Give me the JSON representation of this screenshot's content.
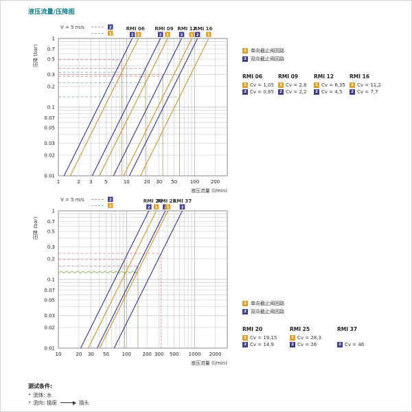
{
  "page": {
    "title": "液压流量/压降图"
  },
  "legend_circuits": {
    "badge1": "1",
    "badge2": "2",
    "item1": "单向截止阀回路",
    "item2": "双向截止阀回路"
  },
  "chart_data": [
    {
      "type": "line",
      "id": "small-sizes",
      "title": "",
      "velocity_label": "V = 5 m/s",
      "xlabel": "液压流量 (l/min)",
      "ylabel": "压降 (bar)",
      "x_scale": "log",
      "y_scale": "log",
      "xmin": 1,
      "xmax": 300,
      "ymin": 0.01,
      "ymax": 1,
      "x_ticks": [
        1,
        2,
        3,
        5,
        10,
        20,
        30,
        50,
        100,
        200
      ],
      "y_ticks": [
        1,
        0.7,
        0.5,
        0.3,
        0.2,
        0.1,
        0.07,
        0.05,
        0.03,
        0.02,
        0.01
      ],
      "grid": true,
      "flow_formula": "Q_l_per_min = 14.27 * Cv * sqrt(dP_bar)",
      "models": [
        {
          "name": "RMI 06",
          "cv1": 1.05,
          "cv2": 0.85,
          "q5": 8.5
        },
        {
          "name": "RMI 09",
          "cv1": 2.8,
          "cv2": 2.2,
          "q5": 19
        },
        {
          "name": "RMI 12",
          "cv1": 6.35,
          "cv2": 4.5,
          "q5": 34
        },
        {
          "name": "RMI 16",
          "cv1": 11.2,
          "cv2": 7.7,
          "q5": 60
        }
      ]
    },
    {
      "type": "line",
      "id": "large-sizes",
      "title": "",
      "velocity_label": "V = 5 m/s",
      "xlabel": "液压流量 (l/min)",
      "ylabel": "压降 (bar)",
      "x_scale": "log",
      "y_scale": "log",
      "xmin": 10,
      "xmax": 3000,
      "ymin": 0.01,
      "ymax": 1,
      "x_ticks": [
        10,
        20,
        30,
        50,
        100,
        200,
        300,
        500,
        1000,
        2000
      ],
      "y_ticks": [
        1,
        0.7,
        0.5,
        0.3,
        0.2,
        0.1,
        0.07,
        0.05,
        0.03,
        0.02,
        0.01
      ],
      "grid": true,
      "flow_formula": "Q_l_per_min = 14.27 * Cv * sqrt(dP_bar)",
      "zigzag": {
        "dp": 0.128,
        "q_end": 150
      },
      "models": [
        {
          "name": "RMI 20",
          "cv1": 19.15,
          "cv2": 14.9,
          "q5": 94
        },
        {
          "name": "RMI 25",
          "cv1": 28.3,
          "cv2": 26,
          "q5": 147
        },
        {
          "name": "RMI 37",
          "cv1": null,
          "cv2": 46,
          "q5": 322
        }
      ]
    }
  ],
  "tables": [
    {
      "columns": [
        {
          "name": "RMI 06",
          "cv1": "Cv = 1,05",
          "cv2": "Cv = 0,85"
        },
        {
          "name": "RMI 09",
          "cv1": "Cv = 2,8",
          "cv2": "Cv = 2,2"
        },
        {
          "name": "RMI 12",
          "cv1": "Cv = 6,35",
          "cv2": "Cv = 4,5"
        },
        {
          "name": "RMI 16",
          "cv1": "Cv = 11,2",
          "cv2": "Cv = 7,7"
        }
      ]
    },
    {
      "columns": [
        {
          "name": "RMI 20",
          "cv1": "Cv = 19,15",
          "cv2": "Cv = 14,9"
        },
        {
          "name": "RMI 25",
          "cv1": "Cv = 28,3",
          "cv2": "Cv = 26"
        },
        {
          "name": "RMI 37",
          "cv1": "",
          "cv2": "Cv = 46"
        }
      ]
    }
  ],
  "footer": {
    "title": "测试条件:",
    "bullet": "•",
    "item1": "流体: 水",
    "item2_pre": "流向: 插座",
    "item2_post": "插头"
  },
  "colors": {
    "title_teal": "#17808e",
    "line_circuit2_navy": "#3e4291",
    "line_circuit1_orange": "#cf9a3a",
    "badge_navy": "#3c3e8e",
    "badge_orange": "#df9f2b",
    "ref_dash_red": "#d88e8e",
    "ref_dash_teal": "#8cb6b6",
    "ref_vertical": "#b3a683",
    "zigzag_green": "#8ab04f"
  }
}
